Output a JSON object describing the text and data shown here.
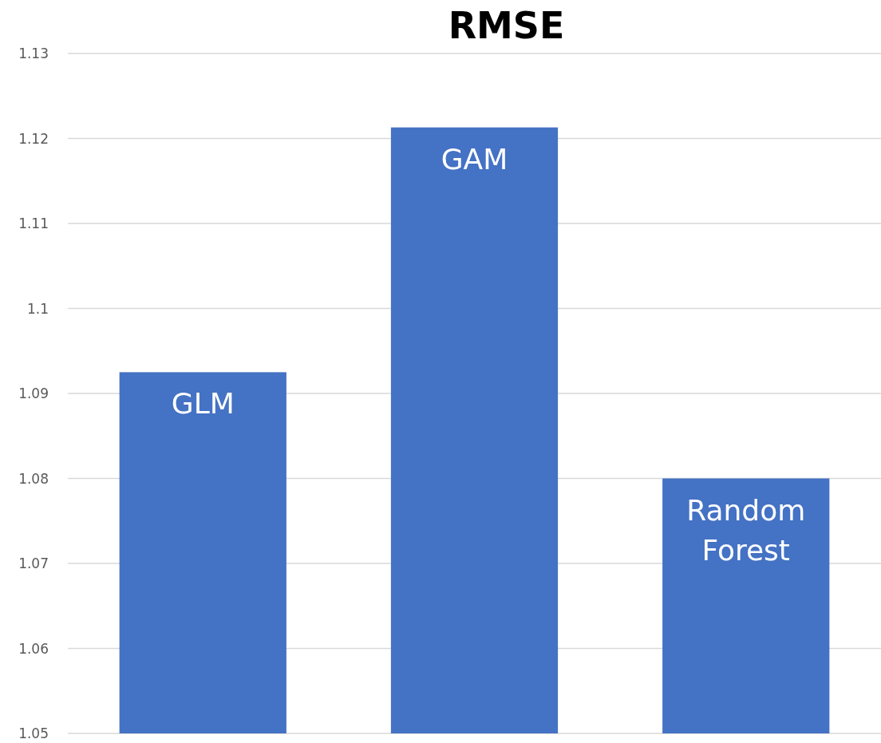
{
  "chart_data": {
    "type": "bar",
    "title": "RMSE",
    "categories": [
      "GLM",
      "GAM",
      "Random Forest"
    ],
    "values": [
      1.0925,
      1.1213,
      1.08
    ],
    "color": "#4472c4",
    "ylim": [
      1.05,
      1.13
    ],
    "yticks": [
      1.05,
      1.06,
      1.07,
      1.08,
      1.09,
      1.1,
      1.11,
      1.12,
      1.13
    ],
    "grid": "y"
  }
}
